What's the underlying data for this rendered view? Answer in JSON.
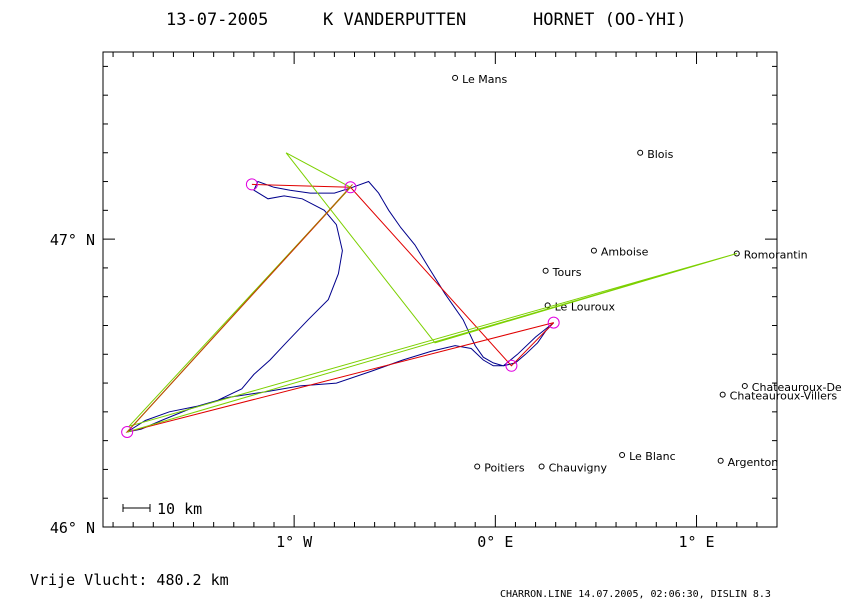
{
  "header": {
    "date": "13-07-2005",
    "pilot": "K VANDERPUTTEN",
    "aircraft": "HORNET (OO-YHI)"
  },
  "footer": {
    "distance": "Vrije Vlucht:  480.2 km",
    "credit": "CHARRON.LINE 14.07.2005, 02:06:30, DISLIN 8.3"
  },
  "chart_data": {
    "type": "map",
    "axes": {
      "lon_ticks": [
        {
          "value": -1,
          "label": "1° W"
        },
        {
          "value": 0,
          "label": "0° E"
        },
        {
          "value": 1,
          "label": "1° E"
        }
      ],
      "lat_ticks": [
        {
          "value": 46,
          "label": "46° N"
        },
        {
          "value": 47,
          "label": "47° N"
        }
      ],
      "lon_range": [
        -1.95,
        1.4
      ],
      "lat_range": [
        46.0,
        47.65
      ]
    },
    "scale_bar": {
      "label": "10 km",
      "km": 10
    },
    "cities": [
      {
        "name": "Le Mans",
        "lon": -0.2,
        "lat": 47.56
      },
      {
        "name": "Blois",
        "lon": 0.72,
        "lat": 47.3
      },
      {
        "name": "Amboise",
        "lon": 0.49,
        "lat": 46.96
      },
      {
        "name": "Tours",
        "lon": 0.25,
        "lat": 46.89
      },
      {
        "name": "Romorantin",
        "lon": 1.2,
        "lat": 46.95
      },
      {
        "name": "Le Louroux",
        "lon": 0.26,
        "lat": 46.77
      },
      {
        "name": "Chateauroux-De",
        "lon": 1.24,
        "lat": 46.49
      },
      {
        "name": "Chateauroux-Villers",
        "lon": 1.13,
        "lat": 46.46
      },
      {
        "name": "Poitiers",
        "lon": -0.09,
        "lat": 46.21
      },
      {
        "name": "Chauvigny",
        "lon": 0.23,
        "lat": 46.21
      },
      {
        "name": "Le Blanc",
        "lon": 0.63,
        "lat": 46.25
      },
      {
        "name": "Argenton",
        "lon": 1.12,
        "lat": 46.23
      }
    ],
    "turnpoints": [
      {
        "lon": 0.29,
        "lat": 46.71
      },
      {
        "lon": 0.08,
        "lat": 46.56
      },
      {
        "lon": -0.72,
        "lat": 47.18
      },
      {
        "lon": -1.21,
        "lat": 47.19
      },
      {
        "lon": -1.83,
        "lat": 46.33
      }
    ],
    "series": [
      {
        "color": "#00008c",
        "points": [
          [
            0.29,
            46.71
          ],
          [
            0.25,
            46.68
          ],
          [
            0.21,
            46.64
          ],
          [
            0.15,
            46.6
          ],
          [
            0.1,
            46.57
          ],
          [
            0.04,
            46.56
          ],
          [
            -0.01,
            46.57
          ],
          [
            -0.06,
            46.59
          ],
          [
            -0.1,
            46.63
          ],
          [
            -0.16,
            46.72
          ],
          [
            -0.25,
            46.81
          ],
          [
            -0.33,
            46.9
          ],
          [
            -0.4,
            46.98
          ],
          [
            -0.47,
            47.04
          ],
          [
            -0.53,
            47.1
          ],
          [
            -0.58,
            47.16
          ],
          [
            -0.63,
            47.2
          ],
          [
            -0.71,
            47.18
          ],
          [
            -0.8,
            47.16
          ],
          [
            -0.92,
            47.16
          ],
          [
            -1.02,
            47.17
          ],
          [
            -1.1,
            47.18
          ],
          [
            -1.18,
            47.2
          ],
          [
            -1.2,
            47.17
          ],
          [
            -1.13,
            47.14
          ],
          [
            -1.05,
            47.15
          ],
          [
            -0.96,
            47.14
          ],
          [
            -0.85,
            47.1
          ],
          [
            -0.79,
            47.05
          ],
          [
            -0.76,
            46.96
          ],
          [
            -0.78,
            46.88
          ],
          [
            -0.83,
            46.79
          ],
          [
            -0.93,
            46.72
          ],
          [
            -1.04,
            46.64
          ],
          [
            -1.12,
            46.58
          ],
          [
            -1.2,
            46.53
          ],
          [
            -1.26,
            46.48
          ],
          [
            -1.38,
            46.44
          ],
          [
            -1.52,
            46.41
          ],
          [
            -1.66,
            46.37
          ],
          [
            -1.76,
            46.34
          ],
          [
            -1.83,
            46.33
          ],
          [
            -1.74,
            46.37
          ],
          [
            -1.62,
            46.4
          ],
          [
            -1.48,
            46.42
          ],
          [
            -1.33,
            46.45
          ],
          [
            -1.14,
            46.47
          ],
          [
            -0.97,
            46.49
          ],
          [
            -0.79,
            46.5
          ],
          [
            -0.62,
            46.54
          ],
          [
            -0.46,
            46.58
          ],
          [
            -0.32,
            46.61
          ],
          [
            -0.2,
            46.63
          ],
          [
            -0.12,
            46.62
          ],
          [
            -0.06,
            46.58
          ],
          [
            -0.01,
            46.56
          ],
          [
            0.04,
            46.56
          ],
          [
            0.11,
            46.6
          ],
          [
            0.2,
            46.66
          ],
          [
            0.29,
            46.71
          ]
        ]
      },
      {
        "color": "#e00000",
        "points": [
          [
            0.29,
            46.71
          ],
          [
            0.08,
            46.56
          ],
          [
            -0.72,
            47.18
          ],
          [
            -1.21,
            47.19
          ],
          [
            -0.72,
            47.18
          ],
          [
            -1.83,
            46.33
          ],
          [
            0.29,
            46.71
          ]
        ]
      },
      {
        "color": "#7cd000",
        "points": [
          [
            -1.83,
            46.33
          ],
          [
            1.2,
            46.95
          ],
          [
            -1.82,
            46.35
          ],
          [
            -0.72,
            47.18
          ],
          [
            -1.04,
            47.3
          ],
          [
            -0.3,
            46.64
          ],
          [
            1.2,
            46.95
          ]
        ]
      },
      {
        "color": "#b06000",
        "points": [
          [
            -1.83,
            46.33
          ],
          [
            -0.71,
            47.19
          ]
        ]
      }
    ]
  }
}
